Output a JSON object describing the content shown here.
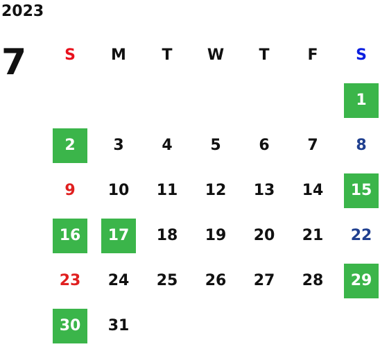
{
  "header": {
    "year": "2023",
    "month": "7"
  },
  "weekdays": [
    "S",
    "M",
    "T",
    "W",
    "T",
    "F",
    "S"
  ],
  "days": [
    {
      "day": 1,
      "highlight": true
    },
    {
      "day": 2,
      "highlight": true
    },
    {
      "day": 3,
      "highlight": false
    },
    {
      "day": 4,
      "highlight": false
    },
    {
      "day": 5,
      "highlight": false
    },
    {
      "day": 6,
      "highlight": false
    },
    {
      "day": 7,
      "highlight": false
    },
    {
      "day": 8,
      "highlight": false
    },
    {
      "day": 9,
      "highlight": false
    },
    {
      "day": 10,
      "highlight": false
    },
    {
      "day": 11,
      "highlight": false
    },
    {
      "day": 12,
      "highlight": false
    },
    {
      "day": 13,
      "highlight": false
    },
    {
      "day": 14,
      "highlight": false
    },
    {
      "day": 15,
      "highlight": true
    },
    {
      "day": 16,
      "highlight": true
    },
    {
      "day": 17,
      "highlight": true
    },
    {
      "day": 18,
      "highlight": false
    },
    {
      "day": 19,
      "highlight": false
    },
    {
      "day": 20,
      "highlight": false
    },
    {
      "day": 21,
      "highlight": false
    },
    {
      "day": 22,
      "highlight": false
    },
    {
      "day": 23,
      "highlight": false
    },
    {
      "day": 24,
      "highlight": false
    },
    {
      "day": 25,
      "highlight": false
    },
    {
      "day": 26,
      "highlight": false
    },
    {
      "day": 27,
      "highlight": false
    },
    {
      "day": 28,
      "highlight": false
    },
    {
      "day": 29,
      "highlight": true
    },
    {
      "day": 30,
      "highlight": true
    },
    {
      "day": 31,
      "highlight": false
    }
  ]
}
